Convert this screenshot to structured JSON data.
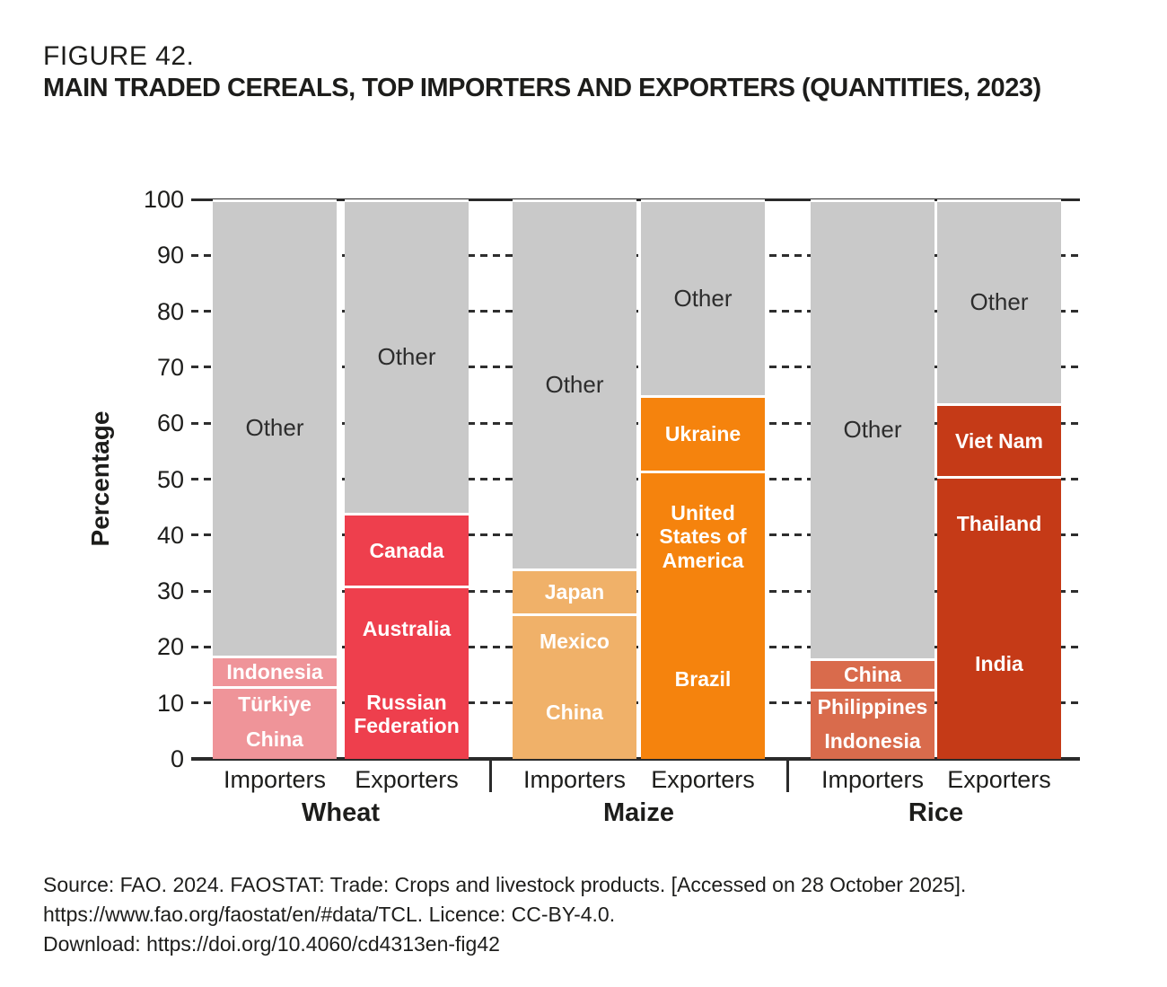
{
  "figure": {
    "label": "FIGURE 42.",
    "title": "MAIN TRADED CEREALS, TOP IMPORTERS AND EXPORTERS (QUANTITIES, 2023)"
  },
  "source": {
    "lines": [
      "Source: FAO. 2024. FAOSTAT: Trade: Crops and livestock products. [Accessed on 28 October 2025].",
      "https://www.fao.org/faostat/en/#data/TCL. Licence: CC-BY-4.0.",
      "Download: https://doi.org/10.4060/cd4313en-fig42"
    ]
  },
  "chart_data": {
    "type": "bar",
    "stacked": true,
    "title": "MAIN TRADED CEREALS, TOP IMPORTERS AND EXPORTERS (QUANTITIES, 2023)",
    "xlabel": "",
    "ylabel": "Percentage",
    "ylim": [
      0,
      100
    ],
    "yticks": [
      0,
      10,
      20,
      30,
      40,
      50,
      60,
      70,
      80,
      90,
      100
    ],
    "grid": "dashed horizontal",
    "legend": "none (labels inside segments)",
    "other_color": "#c9c9c9",
    "other_text_color": "#2d2d2d",
    "groups": [
      {
        "label": "Wheat",
        "bars": [
          {
            "label": "Importers",
            "color": "#ef9499",
            "segments": [
              {
                "name": "China",
                "value": 7
              },
              {
                "name": "Türkiye",
                "value": 6
              },
              {
                "name": "Indonesia",
                "value": 5.5
              },
              {
                "name": "Other",
                "value": 81.5
              }
            ]
          },
          {
            "label": "Exporters",
            "color": "#ee3f4d",
            "segments": [
              {
                "name": "Russian Federation",
                "value": 16
              },
              {
                "name": "Australia",
                "value": 15
              },
              {
                "name": "Canada",
                "value": 13
              },
              {
                "name": "Other",
                "value": 56
              }
            ]
          }
        ]
      },
      {
        "label": "Maize",
        "bars": [
          {
            "label": "Importers",
            "color": "#f0b169",
            "segments": [
              {
                "name": "China",
                "value": 16.5
              },
              {
                "name": "Mexico",
                "value": 9.5
              },
              {
                "name": "Japan",
                "value": 8
              },
              {
                "name": "Other",
                "value": 66
              }
            ]
          },
          {
            "label": "Exporters",
            "color": "#f5830d",
            "segments": [
              {
                "name": "Brazil",
                "value": 28.5
              },
              {
                "name": "United States of America",
                "value": 23
              },
              {
                "name": "Ukraine",
                "value": 13.5
              },
              {
                "name": "Other",
                "value": 35
              }
            ]
          }
        ]
      },
      {
        "label": "Rice",
        "bars": [
          {
            "label": "Importers",
            "color": "#d96b4c",
            "segments": [
              {
                "name": "Indonesia",
                "value": 6.5
              },
              {
                "name": "Philippines",
                "value": 6
              },
              {
                "name": "China",
                "value": 5.5
              },
              {
                "name": "Other",
                "value": 82
              }
            ]
          },
          {
            "label": "Exporters",
            "color": "#c53a17",
            "segments": [
              {
                "name": "India",
                "value": 34
              },
              {
                "name": "Thailand",
                "value": 16.5
              },
              {
                "name": "Viet Nam",
                "value": 13
              },
              {
                "name": "Other",
                "value": 36.5
              }
            ]
          }
        ]
      }
    ]
  }
}
